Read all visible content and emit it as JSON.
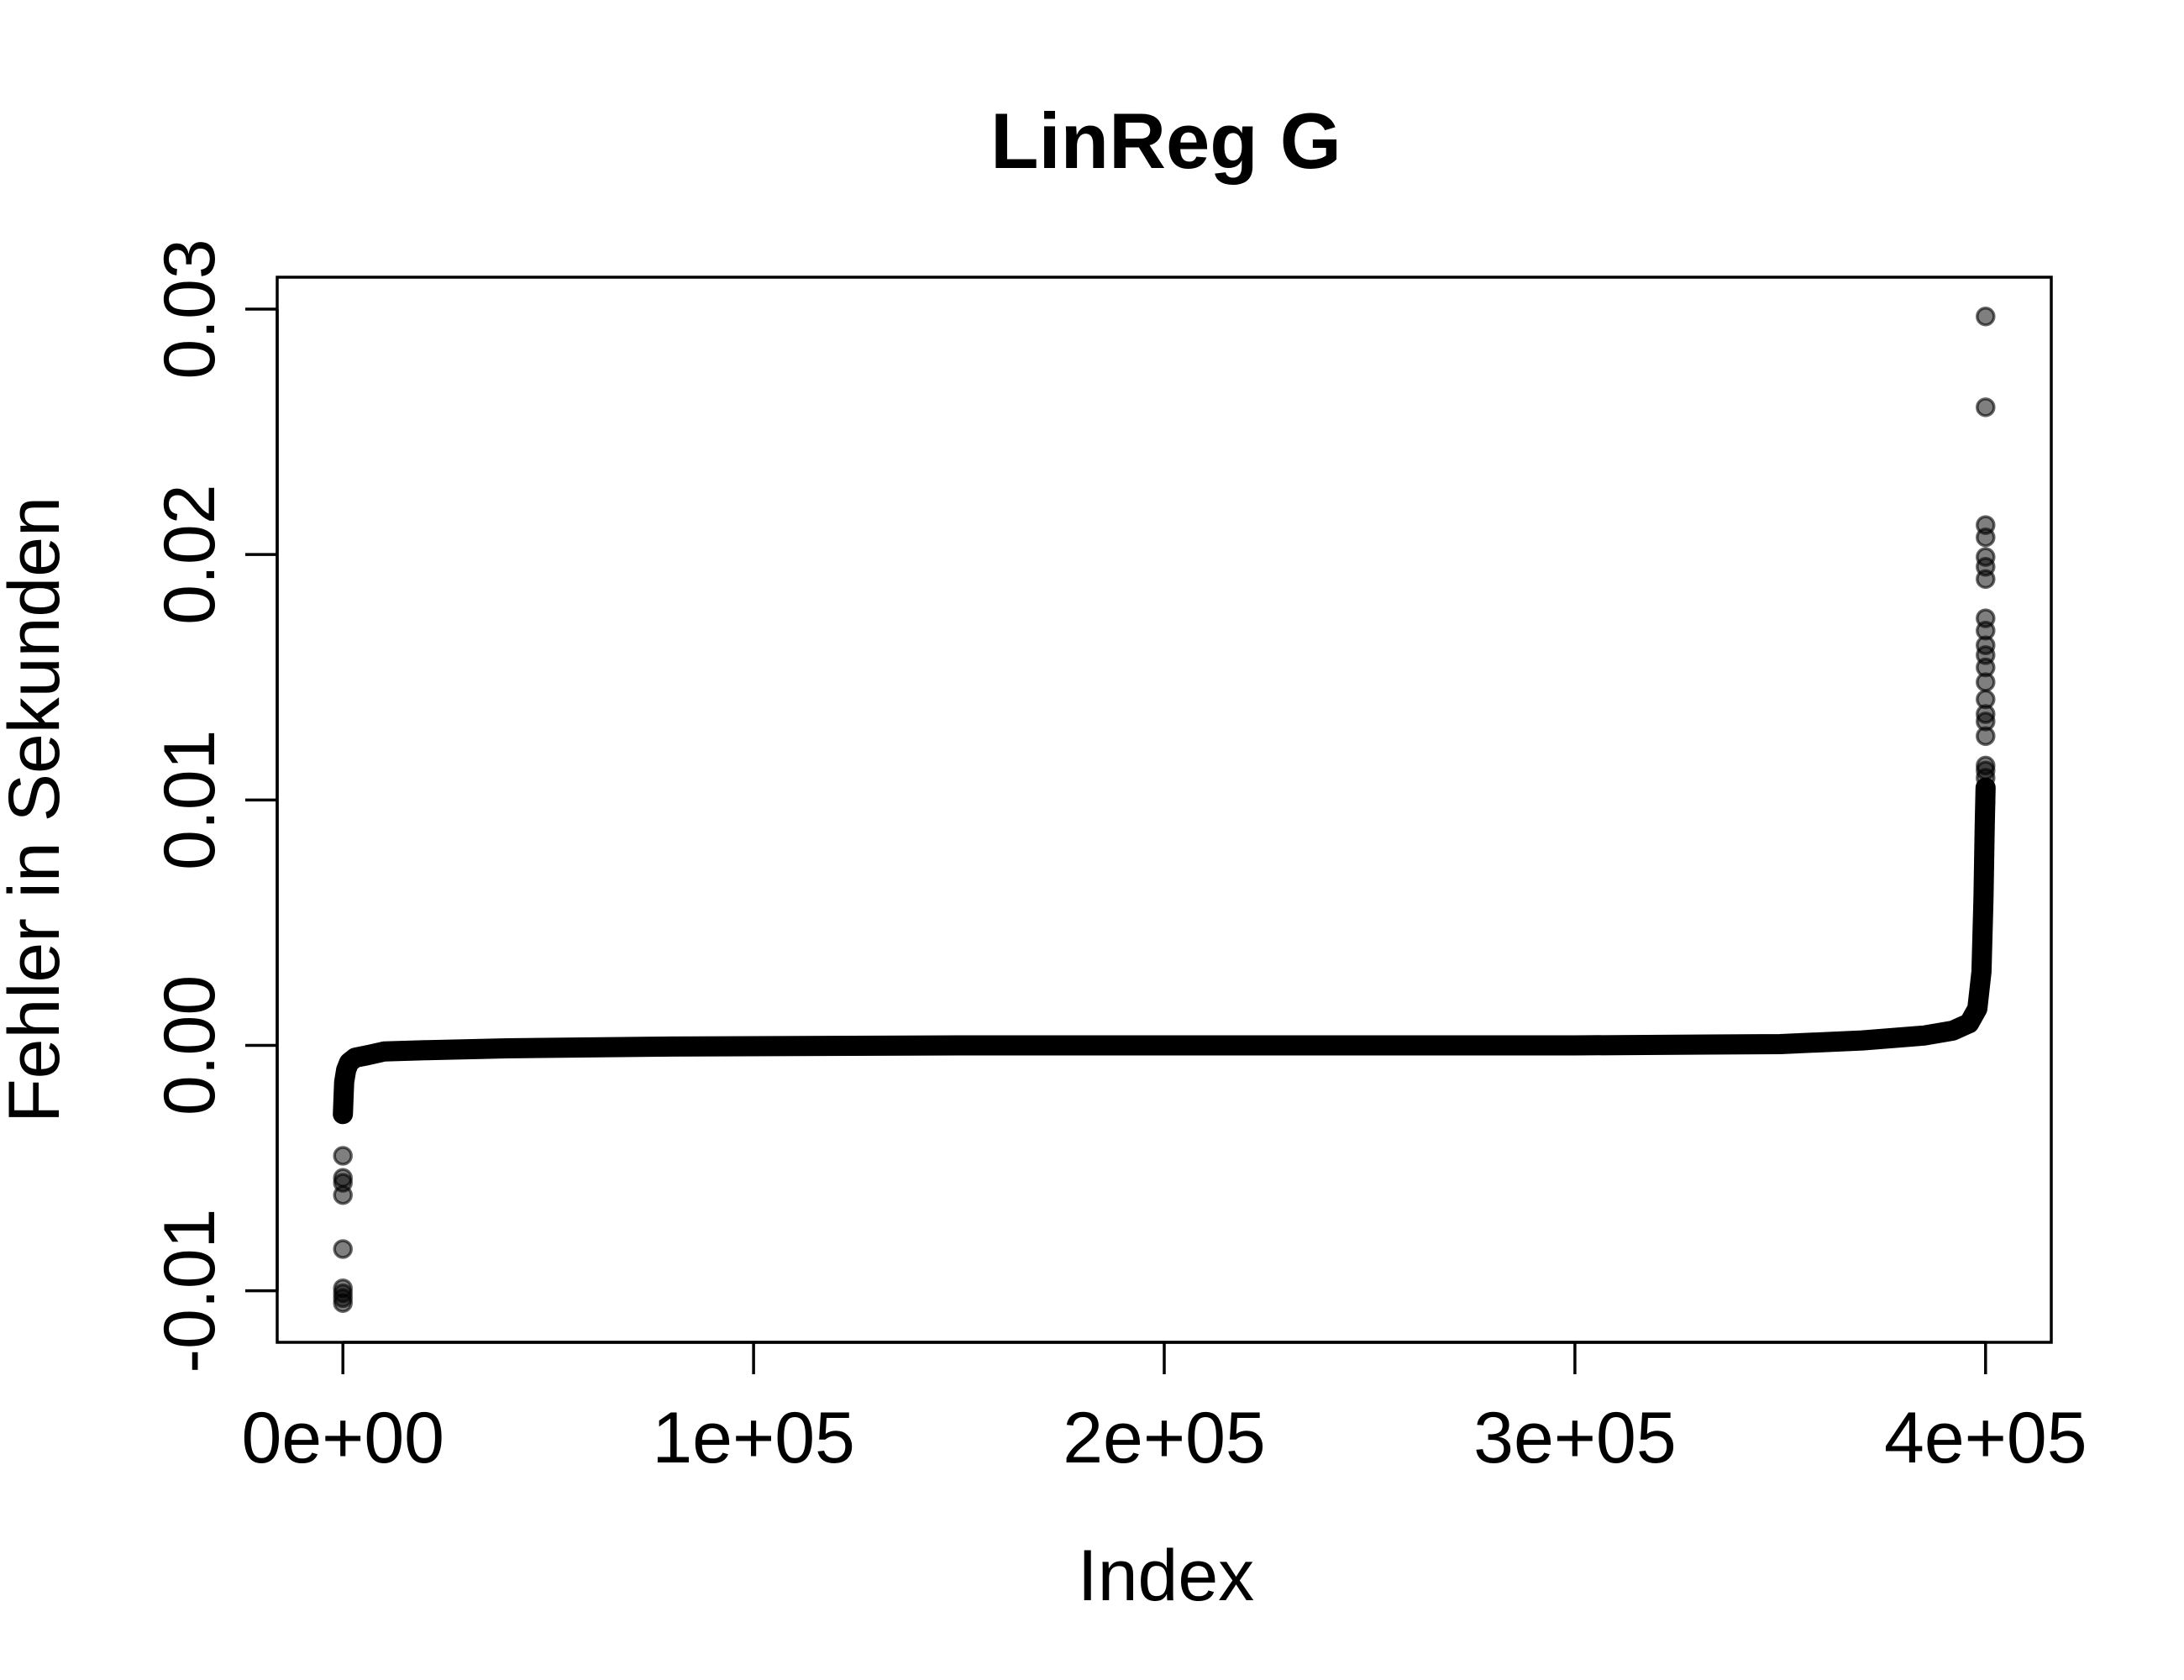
{
  "chart_data": {
    "type": "scatter",
    "title": "LinReg G",
    "xlabel": "Index",
    "ylabel": "Fehler in Sekunden",
    "xlim": [
      -16000,
      416000
    ],
    "ylim": [
      -0.0121,
      0.0313
    ],
    "x_ticks": [
      0,
      100000,
      200000,
      300000,
      400000
    ],
    "x_tick_labels": [
      "0e+00",
      "1e+05",
      "2e+05",
      "3e+05",
      "4e+05"
    ],
    "y_ticks": [
      -0.01,
      0.0,
      0.01,
      0.02,
      0.03
    ],
    "y_tick_labels": [
      "-0.01",
      "0.00",
      "0.01",
      "0.02",
      "0.03"
    ],
    "grid": false,
    "legend": "none",
    "point_color": "#000000",
    "point_alpha": 0.5,
    "n_points": 400000,
    "dense_curve": {
      "x": [
        0,
        300,
        800,
        1500,
        3000,
        6000,
        10000,
        20000,
        40000,
        80000,
        150000,
        200000,
        250000,
        300000,
        350000,
        370000,
        385000,
        392000,
        396000,
        398000,
        399000,
        399500,
        399800,
        400000
      ],
      "y": [
        -0.0028,
        -0.0015,
        -0.001,
        -0.0007,
        -0.0005,
        -0.0004,
        -0.00025,
        -0.0002,
        -0.00012,
        -5e-05,
        0.0,
        0.0,
        0.0,
        0.0,
        5e-05,
        0.0002,
        0.0004,
        0.0006,
        0.0009,
        0.0015,
        0.003,
        0.006,
        0.009,
        0.0105
      ]
    },
    "outliers": {
      "x": [
        0,
        0,
        0,
        0,
        0,
        0,
        0,
        0,
        0,
        400000,
        400000,
        400000,
        400000,
        400000,
        400000,
        400000,
        400000,
        400000,
        400000,
        400000,
        400000,
        400000,
        400000,
        400000,
        400000,
        400000,
        400000,
        400000,
        400000,
        400000,
        400000
      ],
      "y": [
        -0.0045,
        -0.0054,
        -0.0056,
        -0.0061,
        -0.0083,
        -0.0099,
        -0.0101,
        -0.0103,
        -0.0105,
        0.0297,
        0.026,
        0.0212,
        0.0207,
        0.0199,
        0.0195,
        0.019,
        0.0174,
        0.0169,
        0.0163,
        0.0159,
        0.0154,
        0.0148,
        0.0141,
        0.0135,
        0.0132,
        0.0126,
        0.0114,
        0.0112,
        0.0109,
        0.0104,
        0.0099
      ]
    }
  }
}
